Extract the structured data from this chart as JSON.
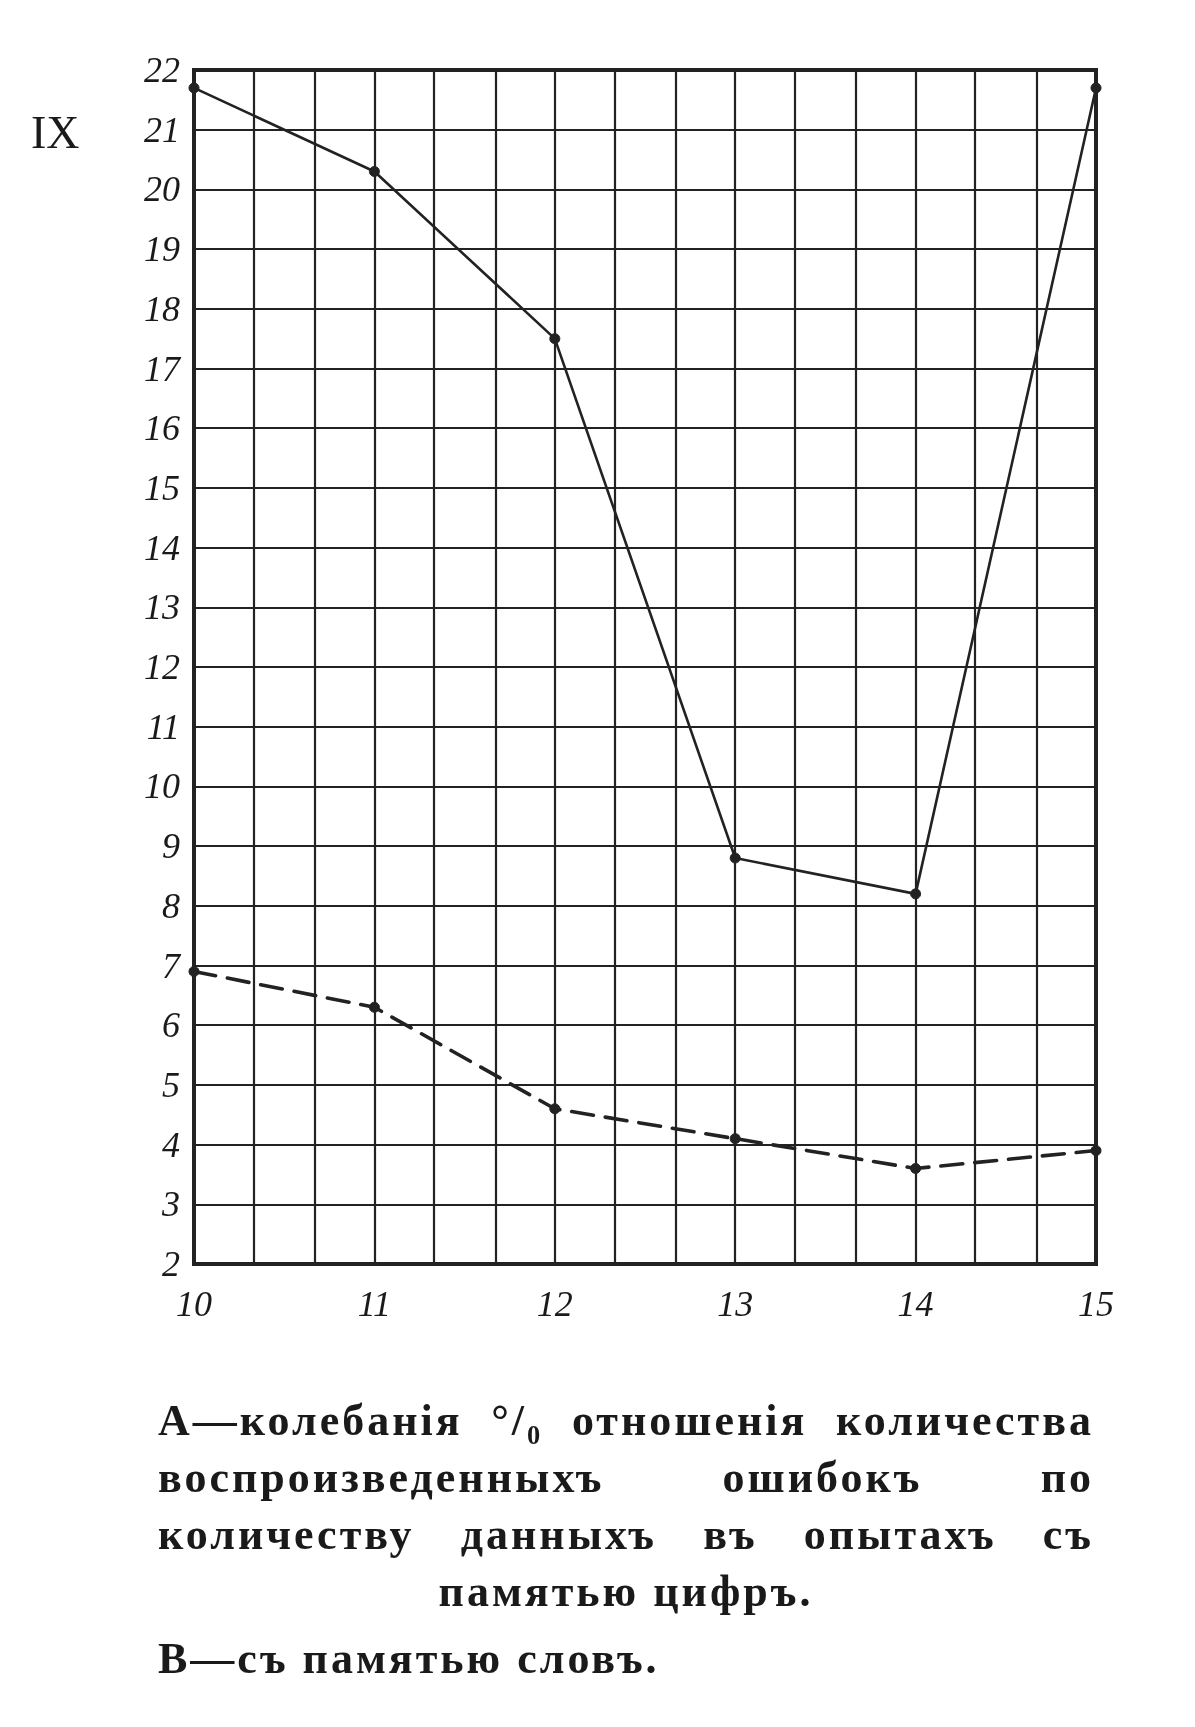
{
  "chart_data": {
    "type": "line",
    "title": "IX",
    "x": [
      10,
      11,
      12,
      13,
      14,
      15
    ],
    "series": [
      {
        "color": "#222222",
        "line_style": "solid",
        "values": [
          21.7,
          20.3,
          17.5,
          8.8,
          8.2,
          21.7
        ]
      },
      {
        "color": "#222222",
        "line_style": "dashed",
        "values": [
          6.9,
          6.3,
          4.6,
          4.1,
          3.6,
          3.9
        ]
      }
    ],
    "xlim": [
      10,
      15
    ],
    "ylim": [
      2,
      22
    ],
    "xticks": [
      10,
      {
        "value": 10.33,
        "label": null
      },
      {
        "value": 10.67,
        "label": null
      },
      11,
      {
        "value": 11.33,
        "label": null
      },
      {
        "value": 11.67,
        "label": null
      },
      12,
      {
        "value": 12.33,
        "label": null
      },
      {
        "value": 12.67,
        "label": null
      },
      13,
      {
        "value": 13.33,
        "label": null
      },
      {
        "value": 13.67,
        "label": null
      },
      14,
      {
        "value": 14.33,
        "label": null
      },
      {
        "value": 14.67,
        "label": null
      },
      15
    ],
    "yticks": [
      2,
      3,
      4,
      5,
      6,
      7,
      8,
      9,
      10,
      11,
      12,
      13,
      14,
      15,
      16,
      17,
      18,
      19,
      20,
      21,
      22
    ],
    "grid": true,
    "marker": "circle",
    "annotations": [
      "А—колебанія °/₀ отношенія количества воспроизведенныхъ ошибокъ по количеству данныхъ въ опытахъ съ памятью цифръ.",
      "В—съ памятью словъ."
    ]
  }
}
